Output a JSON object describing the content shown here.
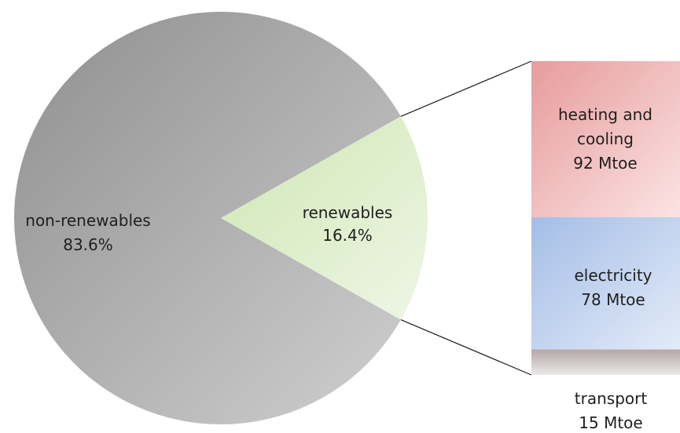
{
  "chart_data": {
    "type": "pie",
    "title": "",
    "slices": [
      {
        "label": "non-renewables",
        "value_label": "83.6%",
        "value": 83.6,
        "color": "#a6a6a6"
      },
      {
        "label": "renewables",
        "value_label": "16.4%",
        "value": 16.4,
        "color": "#d7ecc4"
      }
    ],
    "breakdown": {
      "of": "renewables",
      "type": "stacked-bar",
      "segments": [
        {
          "label_lines": [
            "heating and",
            "cooling",
            "92 Mtoe"
          ],
          "value": 92,
          "unit": "Mtoe",
          "color": "#f2c4c4"
        },
        {
          "label_lines": [
            "electricity",
            "78 Mtoe"
          ],
          "value": 78,
          "unit": "Mtoe",
          "color": "#c3d4ef"
        },
        {
          "label_lines": [
            "transport",
            "15 Mtoe"
          ],
          "value": 15,
          "unit": "Mtoe",
          "color": "#c9bebe"
        }
      ]
    }
  }
}
